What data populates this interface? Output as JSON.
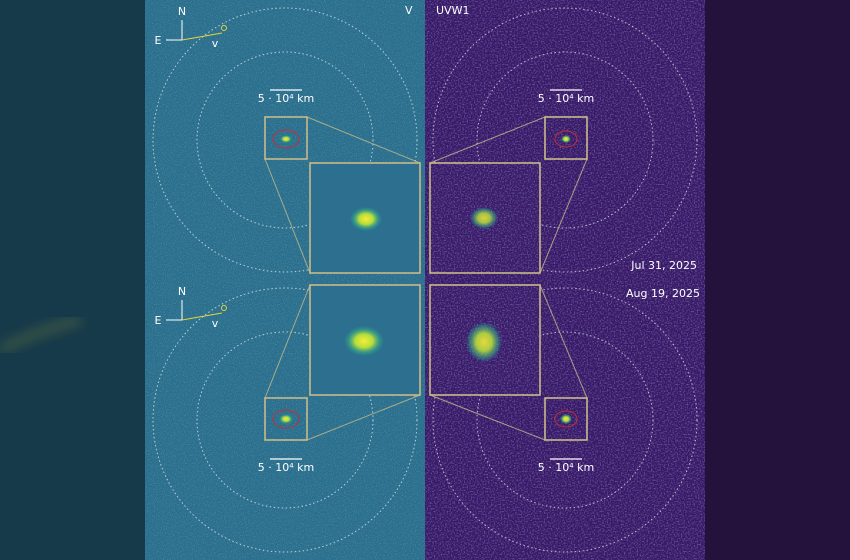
{
  "panels": {
    "left_label": "V",
    "right_label": "UVW1"
  },
  "compass": [
    {
      "north": "N",
      "east": "E",
      "velocity": "v"
    },
    {
      "north": "N",
      "east": "E",
      "velocity": "v"
    }
  ],
  "scale_bars": [
    "5 · 10⁴ km",
    "5 · 10⁴ km",
    "5 · 10⁴ km",
    "5 · 10⁴ km"
  ],
  "dates": [
    "Jul 31, 2025",
    "Aug 19, 2025"
  ]
}
